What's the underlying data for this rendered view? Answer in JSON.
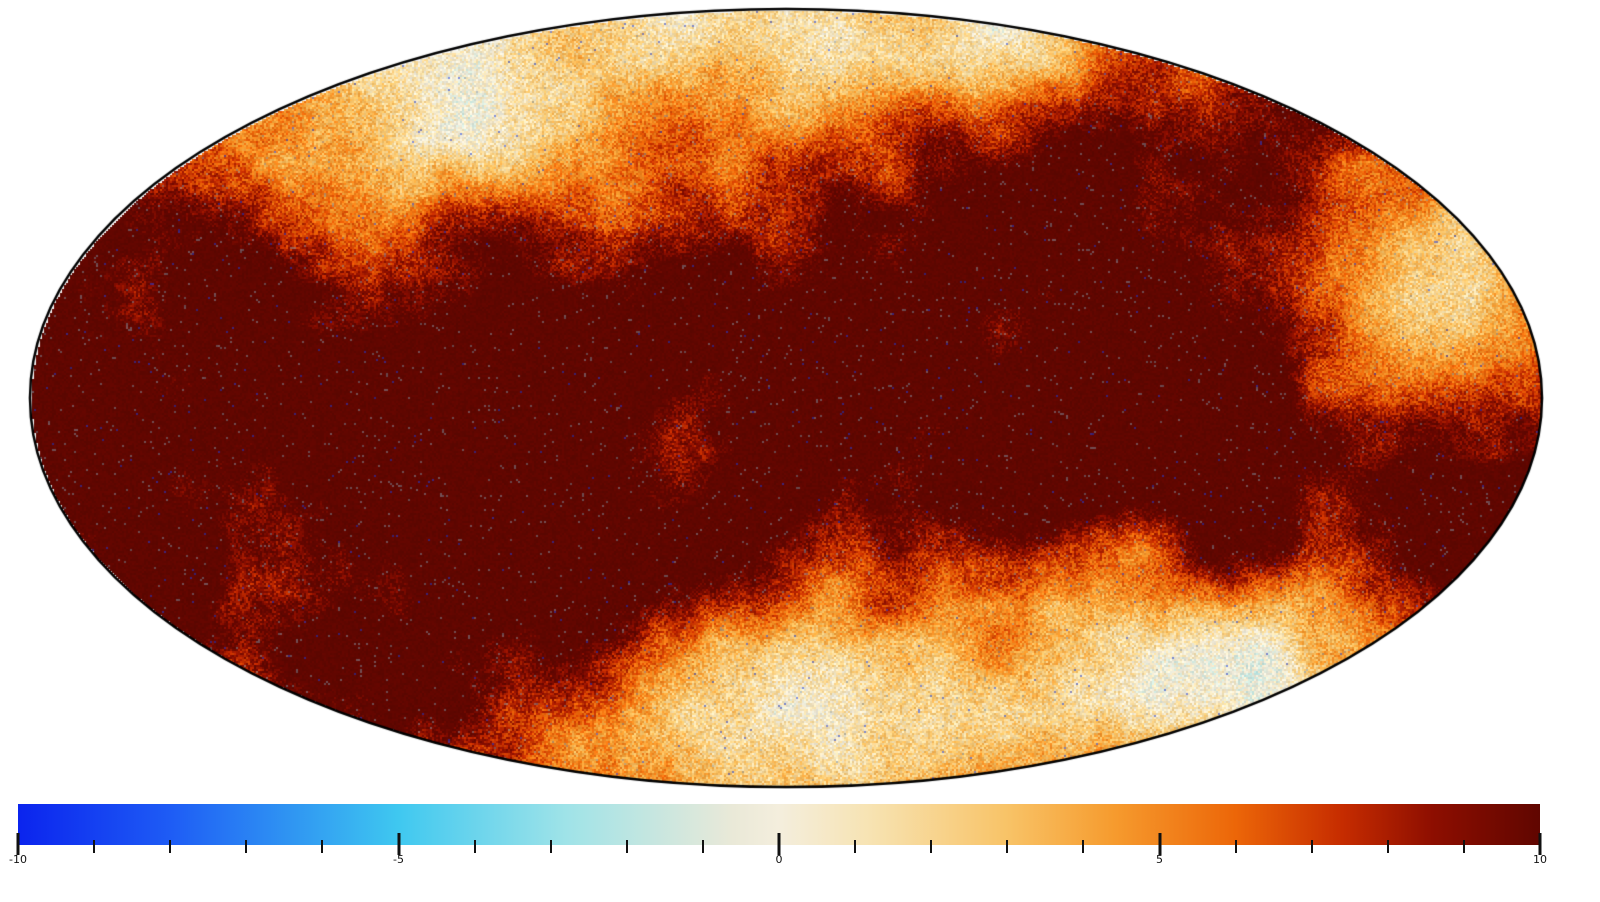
{
  "page": {
    "background": "#ffffff"
  },
  "chart_data": {
    "type": "heatmap",
    "projection": "mollweide",
    "title": "",
    "xlabel": "",
    "ylabel": "",
    "legend": "none",
    "grid": "off",
    "outline_color": "#000000",
    "colorbar": {
      "orientation": "horizontal",
      "range": [
        -10,
        10
      ],
      "major_ticks": [
        -10,
        -5,
        0,
        5,
        10
      ],
      "major_tick_labels": [
        "-10",
        "-5",
        "0",
        "5",
        "10"
      ],
      "minor_tick_interval": 1,
      "colormap_name": "planck-style diverging (blue-cyan-cream-orange-maroon)",
      "colormap_stops": [
        {
          "pos": 0.0,
          "color": "#0b24ee"
        },
        {
          "pos": 0.1,
          "color": "#1e5cf5"
        },
        {
          "pos": 0.25,
          "color": "#3fc8f0"
        },
        {
          "pos": 0.36,
          "color": "#9fe3e8"
        },
        {
          "pos": 0.47,
          "color": "#eae9d8"
        },
        {
          "pos": 0.5,
          "color": "#f4eedd"
        },
        {
          "pos": 0.56,
          "color": "#f7e3b2"
        },
        {
          "pos": 0.65,
          "color": "#f8c367"
        },
        {
          "pos": 0.72,
          "color": "#f69b2e"
        },
        {
          "pos": 0.8,
          "color": "#ec6608"
        },
        {
          "pos": 0.87,
          "color": "#c62c00"
        },
        {
          "pos": 0.93,
          "color": "#8d0e00"
        },
        {
          "pos": 1.0,
          "color": "#600600"
        }
      ]
    },
    "map_regions": {
      "description": "All-sky Mollweide map dominated by saturated high values (dark maroon, >= +10) across mid-latitudes and flanks; low-value cream/yellow zones (~+1 to +3) near top center-left, bottom center-right, and right mid-upper edge, rimmed by cloudy orange transitions (~+4 to +8); fine pixel noise with faint gray scan-arc striations and sparse blue speckles throughout.",
      "high_value_band": "broad diagonal swath, value >= +10 (saturated)",
      "low_regions": [
        {
          "u": -0.4,
          "v": -0.75,
          "su": 0.42,
          "sv": 0.38
        },
        {
          "u": 0.12,
          "v": -0.95,
          "su": 0.55,
          "sv": 0.3
        },
        {
          "u": 0.18,
          "v": 0.85,
          "su": 0.6,
          "sv": 0.38
        },
        {
          "u": 0.55,
          "v": 0.75,
          "su": 0.35,
          "sv": 0.3
        },
        {
          "u": 0.85,
          "v": -0.3,
          "su": 0.22,
          "sv": 0.38
        }
      ],
      "texture": {
        "gray_striation_color": "#7e93a4",
        "blue_speckle_color": "#1c3bd6"
      }
    }
  }
}
